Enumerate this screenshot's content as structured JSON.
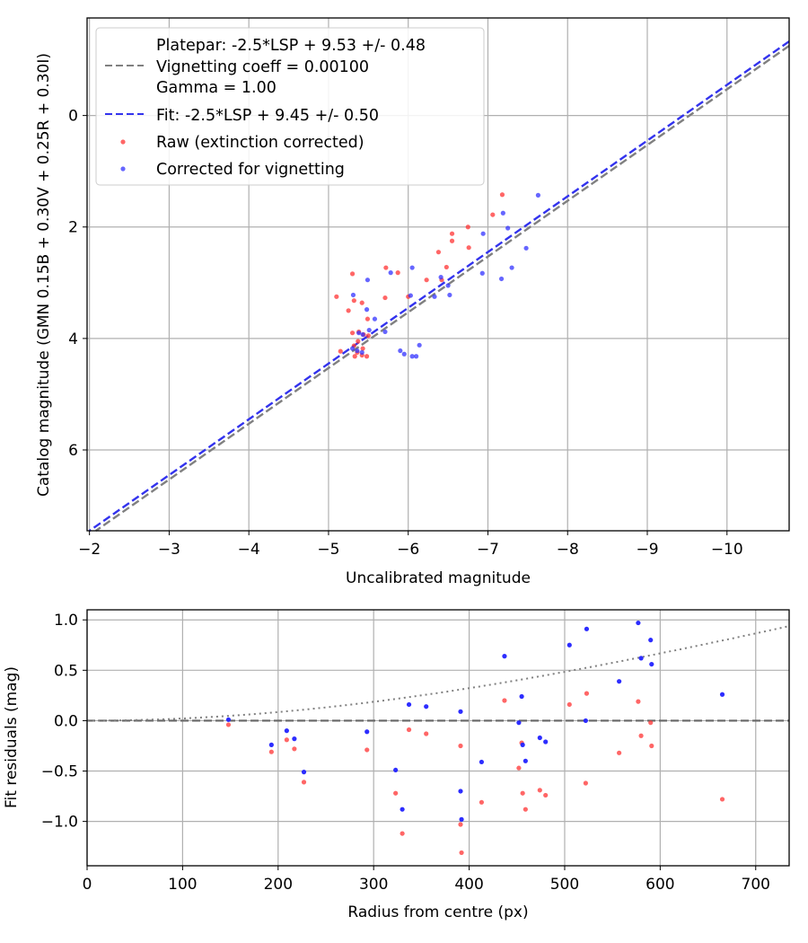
{
  "chart_data": [
    {
      "type": "scatter",
      "xlabel": "Uncalibrated magnitude",
      "ylabel": "Catalog magnitude (GMN 0.15B + 0.30V + 0.25R + 0.30I)",
      "xlim": [
        -1.97,
        -10.78
      ],
      "ylim": [
        7.45,
        -1.75
      ],
      "x_inverted": true,
      "y_inverted": true,
      "grid": true,
      "xticks": [
        -2,
        -3,
        -4,
        -5,
        -6,
        -7,
        -8,
        -9,
        -10
      ],
      "xtick_labels": [
        "−2",
        "−3",
        "−4",
        "−5",
        "−6",
        "−7",
        "−8",
        "−9",
        "−10"
      ],
      "yticks": [
        0,
        2,
        4,
        6
      ],
      "ytick_labels": [
        "0",
        "2",
        "4",
        "6"
      ],
      "legend_position": "top-left",
      "legend": [
        {
          "label": "Platepar: -2.5*LSP + 9.53 +/- 0.48",
          "marker": "none"
        },
        {
          "label": "Vignetting coeff = 0.00100",
          "marker": "dashed-line",
          "color": "#808080"
        },
        {
          "label": "Gamma = 1.00",
          "marker": "none"
        },
        {
          "label": "Fit: -2.5*LSP + 9.45 +/- 0.50",
          "marker": "dashed-line",
          "color": "#3333ee"
        },
        {
          "label": "Raw (extinction corrected)",
          "marker": "point",
          "color": "#ff3333"
        },
        {
          "label": "Corrected for vignetting",
          "marker": "point",
          "color": "#3333ff"
        }
      ],
      "lines": [
        {
          "name": "Platepar",
          "slope": 1.0,
          "intercept": 9.53,
          "color": "#808080",
          "style": "dashed"
        },
        {
          "name": "Fit",
          "slope": 1.0,
          "intercept": 9.45,
          "color": "#3333ee",
          "style": "dashed"
        }
      ],
      "series": [
        {
          "name": "Raw (extinction corrected)",
          "color": "#ff3333",
          "points": [
            [
              -7.18,
              1.42
            ],
            [
              -7.06,
              1.78
            ],
            [
              -6.75,
              2.0
            ],
            [
              -6.55,
              2.12
            ],
            [
              -6.55,
              2.25
            ],
            [
              -6.76,
              2.37
            ],
            [
              -6.38,
              2.45
            ],
            [
              -6.48,
              2.72
            ],
            [
              -6.23,
              2.95
            ],
            [
              -6.42,
              2.95
            ],
            [
              -5.87,
              2.82
            ],
            [
              -5.72,
              2.73
            ],
            [
              -5.3,
              2.84
            ],
            [
              -6.0,
              3.25
            ],
            [
              -5.71,
              3.27
            ],
            [
              -5.1,
              3.25
            ],
            [
              -5.32,
              3.32
            ],
            [
              -5.42,
              3.36
            ],
            [
              -5.25,
              3.5
            ],
            [
              -5.49,
              3.65
            ],
            [
              -5.38,
              3.88
            ],
            [
              -5.3,
              3.9
            ],
            [
              -5.44,
              3.93
            ],
            [
              -5.5,
              3.95
            ],
            [
              -5.37,
              4.05
            ],
            [
              -5.32,
              4.13
            ],
            [
              -5.43,
              4.18
            ],
            [
              -5.15,
              4.23
            ],
            [
              -5.36,
              4.25
            ],
            [
              -5.42,
              4.3
            ],
            [
              -5.48,
              4.32
            ],
            [
              -5.33,
              4.32
            ]
          ]
        },
        {
          "name": "Corrected for vignetting",
          "color": "#3333ff",
          "points": [
            [
              -7.63,
              1.43
            ],
            [
              -7.19,
              1.75
            ],
            [
              -7.25,
              2.02
            ],
            [
              -6.94,
              2.12
            ],
            [
              -7.48,
              2.38
            ],
            [
              -7.3,
              2.73
            ],
            [
              -6.93,
              2.83
            ],
            [
              -7.17,
              2.93
            ],
            [
              -6.05,
              2.73
            ],
            [
              -6.41,
              2.9
            ],
            [
              -6.5,
              3.05
            ],
            [
              -6.52,
              3.22
            ],
            [
              -6.33,
              3.25
            ],
            [
              -6.03,
              3.23
            ],
            [
              -5.78,
              2.82
            ],
            [
              -5.49,
              2.95
            ],
            [
              -5.31,
              3.22
            ],
            [
              -5.48,
              3.48
            ],
            [
              -5.58,
              3.65
            ],
            [
              -5.71,
              3.88
            ],
            [
              -5.51,
              3.85
            ],
            [
              -5.43,
              3.93
            ],
            [
              -5.38,
              3.9
            ],
            [
              -5.3,
              4.18
            ],
            [
              -5.36,
              4.22
            ],
            [
              -5.42,
              4.25
            ],
            [
              -5.9,
              4.22
            ],
            [
              -5.95,
              4.28
            ],
            [
              -6.1,
              4.32
            ],
            [
              -6.05,
              4.32
            ],
            [
              -6.14,
              4.12
            ]
          ]
        }
      ]
    },
    {
      "type": "scatter",
      "xlabel": "Radius from centre (px)",
      "ylabel": "Fit residuals (mag)",
      "xlim": [
        0,
        735
      ],
      "ylim": [
        -1.44,
        1.1
      ],
      "grid": true,
      "xticks": [
        0,
        100,
        200,
        300,
        400,
        500,
        600,
        700
      ],
      "xtick_labels": [
        "0",
        "100",
        "200",
        "300",
        "400",
        "500",
        "600",
        "700"
      ],
      "yticks": [
        1.0,
        0.5,
        0.0,
        -0.5,
        -1.0
      ],
      "ytick_labels": [
        "1.0",
        "0.5",
        "0.0",
        "−0.5",
        "−1.0"
      ],
      "reference_lines": [
        {
          "name": "zero",
          "y": 0.0,
          "color": "#666666",
          "style": "dashed"
        },
        {
          "name": "vignetting model",
          "coeff": 0.001,
          "color": "#808080",
          "style": "dotted"
        }
      ],
      "series": [
        {
          "name": "Raw (extinction corrected)",
          "color": "#ff3333",
          "points": [
            [
              148,
              -0.04
            ],
            [
              193,
              -0.31
            ],
            [
              209,
              -0.19
            ],
            [
              217,
              -0.28
            ],
            [
              227,
              -0.61
            ],
            [
              293,
              -0.29
            ],
            [
              323,
              -0.72
            ],
            [
              330,
              -1.12
            ],
            [
              337,
              -0.09
            ],
            [
              355,
              -0.13
            ],
            [
              391,
              -0.25
            ],
            [
              391,
              -1.03
            ],
            [
              392,
              -1.31
            ],
            [
              413,
              -0.81
            ],
            [
              437,
              0.2
            ],
            [
              452,
              -0.47
            ],
            [
              455,
              -0.22
            ],
            [
              456,
              -0.72
            ],
            [
              459,
              -0.88
            ],
            [
              474,
              -0.69
            ],
            [
              480,
              -0.74
            ],
            [
              505,
              0.16
            ],
            [
              522,
              -0.62
            ],
            [
              523,
              0.27
            ],
            [
              557,
              -0.32
            ],
            [
              577,
              0.19
            ],
            [
              580,
              -0.15
            ],
            [
              590,
              -0.02
            ],
            [
              591,
              -0.25
            ],
            [
              665,
              -0.78
            ]
          ]
        },
        {
          "name": "Corrected for vignetting",
          "color": "#2222ff",
          "points": [
            [
              148,
              0.01
            ],
            [
              193,
              -0.24
            ],
            [
              209,
              -0.1
            ],
            [
              217,
              -0.18
            ],
            [
              227,
              -0.51
            ],
            [
              293,
              -0.11
            ],
            [
              323,
              -0.49
            ],
            [
              330,
              -0.88
            ],
            [
              337,
              0.16
            ],
            [
              355,
              0.14
            ],
            [
              391,
              0.09
            ],
            [
              391,
              -0.7
            ],
            [
              392,
              -0.98
            ],
            [
              413,
              -0.41
            ],
            [
              437,
              0.64
            ],
            [
              452,
              -0.02
            ],
            [
              455,
              0.24
            ],
            [
              456,
              -0.24
            ],
            [
              459,
              -0.4
            ],
            [
              474,
              -0.17
            ],
            [
              480,
              -0.21
            ],
            [
              505,
              0.75
            ],
            [
              522,
              0.0
            ],
            [
              523,
              0.91
            ],
            [
              557,
              0.39
            ],
            [
              577,
              0.97
            ],
            [
              580,
              0.62
            ],
            [
              590,
              0.8
            ],
            [
              591,
              0.56
            ],
            [
              665,
              0.26
            ]
          ]
        }
      ]
    }
  ]
}
